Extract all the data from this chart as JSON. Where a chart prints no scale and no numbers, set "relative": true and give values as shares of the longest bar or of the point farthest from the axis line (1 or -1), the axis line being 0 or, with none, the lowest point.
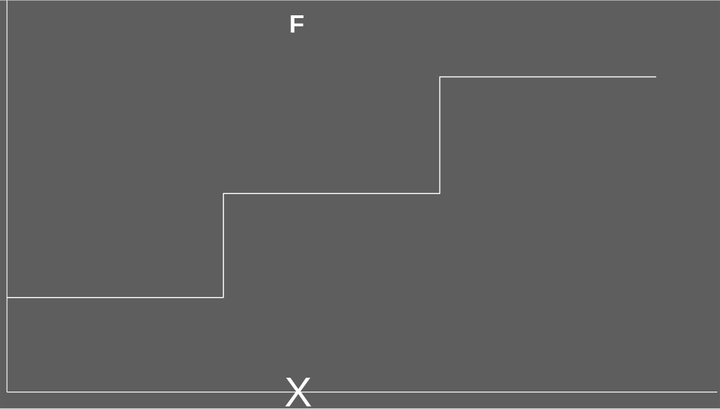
{
  "chart_data": {
    "type": "step",
    "xlabel": "X",
    "ylabel": "F",
    "categories": [
      null,
      null,
      null,
      null
    ],
    "values": [
      0.3,
      0.63,
      1,
      1
    ],
    "relative": true,
    "color": "#ffffff"
  }
}
